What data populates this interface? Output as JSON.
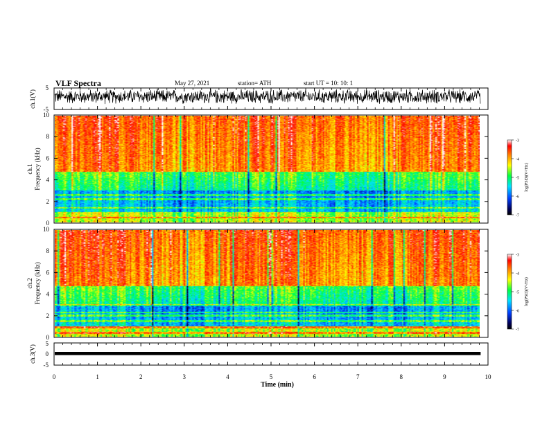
{
  "header": {
    "title": "VLF Spectra",
    "date": "May 27, 2021",
    "station": "station= ATH",
    "start": "start  UT =   10: 10: 1"
  },
  "chart_data": [
    {
      "type": "line",
      "panel": "ch1-waveform",
      "ylabel": "ch.1(V)",
      "ylim": [
        -5,
        5
      ],
      "yticks": [
        "5",
        "-5"
      ],
      "xlim": [
        0,
        10
      ],
      "x_end": 9.83,
      "baseline": 1.0,
      "amplitude": 3.8
    },
    {
      "type": "heatmap",
      "panel": "ch1-spectrogram",
      "ylabel_line1": "ch.1",
      "ylabel_line2": "Frequency (kHz)",
      "ylim": [
        0,
        10
      ],
      "yticks": [
        "0",
        "2",
        "4",
        "6",
        "8",
        "10"
      ],
      "xlim": [
        0,
        10
      ],
      "x_end": 9.83,
      "colorbar": {
        "label": "log(PSD)(V²/Hz)",
        "range": [
          -7,
          -3
        ],
        "ticks": [
          "-3",
          "-4",
          "-5",
          "-6",
          "-7"
        ]
      }
    },
    {
      "type": "heatmap",
      "panel": "ch2-spectrogram",
      "ylabel_line1": "ch.2",
      "ylabel_line2": "Frequency (kHz)",
      "ylim": [
        0,
        10
      ],
      "yticks": [
        "0",
        "2",
        "4",
        "6",
        "8",
        "10"
      ],
      "xlim": [
        0,
        10
      ],
      "x_end": 9.83,
      "colorbar": {
        "label": "log(PSD)(V²/Hz)",
        "range": [
          -7,
          -3
        ],
        "ticks": [
          "-3",
          "-4",
          "-5",
          "-6",
          "-7"
        ]
      }
    },
    {
      "type": "line",
      "panel": "ch3-waveform",
      "ylabel": "ch.3(V)",
      "ylim": [
        -5,
        5
      ],
      "yticks": [
        "5",
        "0",
        "-5"
      ],
      "xlim": [
        0,
        10
      ],
      "x_end": 9.83,
      "baseline": 0,
      "xlabel": "Time (min)",
      "xticks": [
        "0",
        "1",
        "2",
        "3",
        "4",
        "5",
        "6",
        "7",
        "8",
        "9",
        "10"
      ]
    }
  ]
}
